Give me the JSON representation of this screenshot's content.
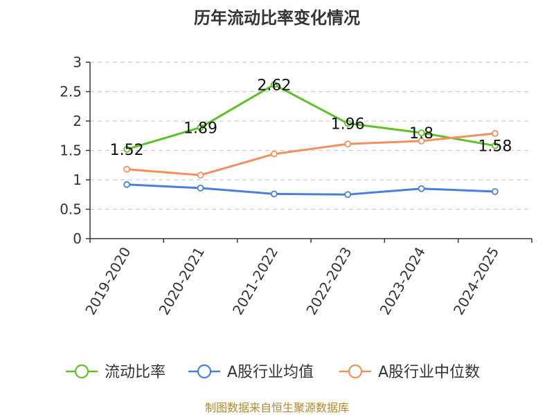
{
  "chart_data": {
    "type": "line",
    "title": "历年流动比率变化情况",
    "categories": [
      "2019-2020",
      "2020-2021",
      "2021-2022",
      "2022-2023",
      "2023-2024",
      "2024-2025"
    ],
    "ylim": [
      0,
      3
    ],
    "yticks": [
      0,
      0.5,
      1,
      1.5,
      2,
      2.5,
      3
    ],
    "ytick_labels": [
      "0",
      "0.5",
      "1",
      "1.5",
      "2",
      "2.5",
      "3"
    ],
    "grid": true,
    "legend_position": "bottom",
    "series": [
      {
        "name": "流动比率",
        "color": "#5fbf26",
        "values": [
          1.52,
          1.89,
          2.62,
          1.96,
          1.8,
          1.58
        ],
        "labels": [
          "1.52",
          "1.89",
          "2.62",
          "1.96",
          "1.8",
          "1.58"
        ]
      },
      {
        "name": "A股行业均值",
        "color": "#4a7fd8",
        "values": [
          0.92,
          0.86,
          0.76,
          0.75,
          0.85,
          0.8
        ]
      },
      {
        "name": "A股行业中位数",
        "color": "#f4905a",
        "values": [
          1.18,
          1.08,
          1.44,
          1.61,
          1.66,
          1.79
        ]
      }
    ]
  },
  "footer": {
    "source_text": "制图数据来自恒生聚源数据库"
  }
}
